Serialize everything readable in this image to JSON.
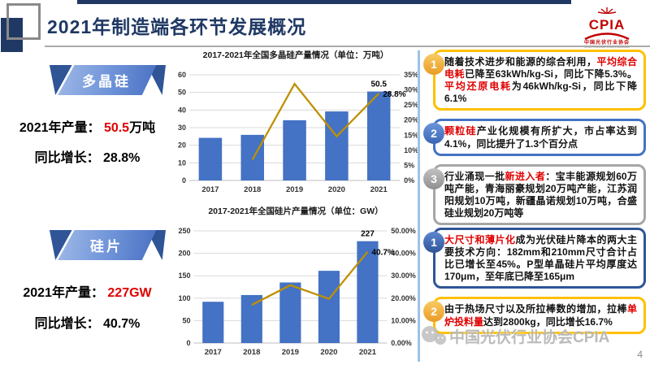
{
  "header": {
    "title": "2021年制造端各环节发展概况",
    "logo": {
      "acronym": "CPIA",
      "cn": "中国光伏行业协会",
      "en": "China Photovoltaic Industry Association"
    },
    "page_number": "4"
  },
  "watermark": {
    "text": "中国光伏行业协会CPIA"
  },
  "polysilicon": {
    "ribbon": "多晶硅",
    "stats": [
      {
        "label": "2021年产量： ",
        "value": "50.5",
        "unit": "万吨"
      },
      {
        "label": "同比增长： ",
        "value": "28.8%",
        "unit": ""
      }
    ],
    "notes": [
      {
        "number": "1",
        "color": "yellow",
        "segments": [
          {
            "t": "随着技术进步和能源的综合利用，"
          },
          {
            "t": "平均综合电耗",
            "red": true
          },
          {
            "t": "已降至63kWh/kg-Si，同比下降5.3%。"
          },
          {
            "t": "平均还原电耗",
            "red": true
          },
          {
            "t": "为46kWh/kg-Si，同比下降6.1%"
          }
        ]
      },
      {
        "number": "2",
        "color": "blue",
        "segments": [
          {
            "t": "颗粒硅",
            "red": true
          },
          {
            "t": "产业化规模有所扩大，市占率达到4.1%，同比提升了1.3个百分点"
          }
        ]
      },
      {
        "number": "3",
        "color": "gray",
        "segments": [
          {
            "t": "行业涌现一批"
          },
          {
            "t": "新进入者",
            "red": true
          },
          {
            "t": "：宝丰能源规划60万吨产能，青海丽豪规划20万吨产能，江苏润阳规划10万吨，新疆晶诺规划10万吨，合盛硅业规划20万吨等"
          }
        ]
      }
    ]
  },
  "wafer": {
    "ribbon": "硅片",
    "stats": [
      {
        "label": "2021年产量： ",
        "value": "227GW",
        "unit": ""
      },
      {
        "label": "同比增长： ",
        "value": "40.7%",
        "unit": ""
      }
    ],
    "notes": [
      {
        "number": "1",
        "color": "darkblue",
        "segments": [
          {
            "t": "大尺寸和薄片化",
            "red": true
          },
          {
            "t": "成为光伏硅片降本的两大主要技术方向：182mm和210mm尺寸合计占比已增长至45%。P型单晶硅片平均厚度达170μm，至年底已降至165μm"
          }
        ]
      },
      {
        "number": "2",
        "color": "yellow",
        "segments": [
          {
            "t": "由于热场尺寸以及所拉棒数的增加，拉棒"
          },
          {
            "t": "单炉投料量",
            "red": true
          },
          {
            "t": "达到2800kg，同比增长16.7%"
          }
        ]
      }
    ]
  },
  "chart_data": [
    {
      "type": "bar+line",
      "title": "2017-2021年全国多晶硅产量情况（单位：万吨）",
      "categories": [
        "2017",
        "2018",
        "2019",
        "2020",
        "2021"
      ],
      "bar_series": {
        "name": "产量（万吨）",
        "values": [
          24.2,
          25.9,
          34.2,
          39.2,
          50.5
        ],
        "color": "#4472C4",
        "axis": "left"
      },
      "line_series": {
        "name": "同比增长",
        "values": [
          null,
          6.9,
          32,
          14.6,
          28.8
        ],
        "color": "#BF9000",
        "axis": "right"
      },
      "left_axis": {
        "min": 0,
        "max": 60,
        "step": 10,
        "labels": [
          "0",
          "10",
          "20",
          "30",
          "40",
          "50",
          "60"
        ]
      },
      "right_axis": {
        "min": 0,
        "max": 35,
        "step": 5,
        "labels": [
          "0%",
          "5%",
          "10%",
          "15%",
          "20%",
          "25%",
          "30%",
          "35%"
        ]
      },
      "bar_label": {
        "index": 4,
        "text": "50.5"
      },
      "line_label": {
        "index": 4,
        "text": "28.8%"
      },
      "grid": true,
      "legend": "none"
    },
    {
      "type": "bar+line",
      "title": "2017-2021年全国硅片产量情况（单位：GW）",
      "categories": [
        "2017",
        "2018",
        "2019",
        "2020",
        "2021"
      ],
      "bar_series": {
        "name": "产量（GW）",
        "values": [
          92,
          107,
          135,
          161,
          227
        ],
        "color": "#4472C4",
        "axis": "left"
      },
      "line_series": {
        "name": "同比增长",
        "values": [
          null,
          17,
          25.8,
          19.7,
          40.7
        ],
        "color": "#BF9000",
        "axis": "right"
      },
      "left_axis": {
        "min": 0,
        "max": 250,
        "step": 50,
        "labels": [
          "0",
          "50",
          "100",
          "150",
          "200",
          "250"
        ]
      },
      "right_axis": {
        "min": 0,
        "max": 50,
        "step": 10,
        "labels": [
          "0.00%",
          "10.00%",
          "20.00%",
          "30.00%",
          "40.00%",
          "50.00%"
        ]
      },
      "bar_label": {
        "index": 4,
        "text": "227"
      },
      "line_label": {
        "index": 4,
        "text": "40.7%"
      },
      "grid": true,
      "legend": "none"
    }
  ],
  "colors": {
    "bar": "#4472C4",
    "line": "#BF9000",
    "navy": "#1F3864",
    "red_highlight": "#E00000",
    "note_yellow": "#FFC000",
    "note_blue": "#4472C4",
    "note_gray": "#A6A6A6",
    "note_darkblue": "#2F5597",
    "divider": "#9DC3E6"
  }
}
